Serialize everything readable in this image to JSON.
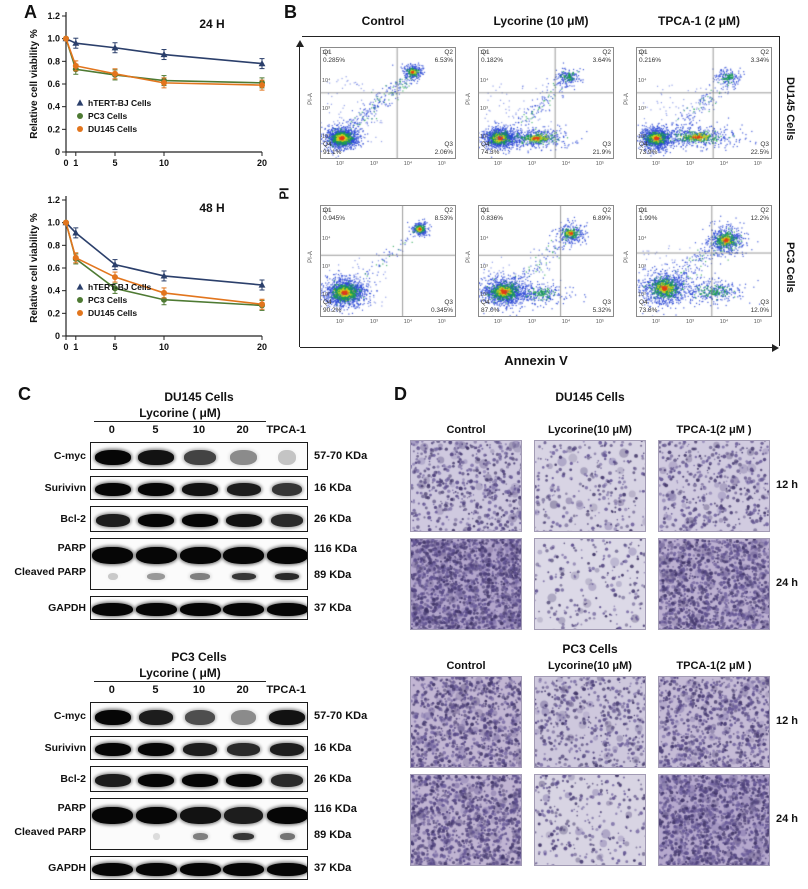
{
  "panels": {
    "a": {
      "label": "A"
    },
    "b": {
      "label": "B",
      "col_headers": [
        "Control",
        "Lycorine (10 μM)",
        "TPCA-1 (2 μM)"
      ],
      "row_labels": [
        "DU145 Cells",
        "PC3 Cells"
      ],
      "x_axis_label": "Annexin V",
      "y_axis_label": "PI",
      "plot_axis_label": "PI-A",
      "y_ticks": [
        "10⁵",
        "10⁴",
        "10³",
        "10²"
      ],
      "x_ticks": [
        "10²",
        "10³",
        "10⁴",
        "10⁵"
      ],
      "quadrant_labels": [
        "Q1",
        "Q2",
        "Q3",
        "Q4"
      ],
      "plots": [
        {
          "row": "DU145 Cells",
          "col": "Control",
          "q1": "0.285%",
          "q2": "6.53%",
          "q3": "2.06%",
          "q4": "91.1%"
        },
        {
          "row": "DU145 Cells",
          "col": "Lycorine (10 μM)",
          "q1": "0.182%",
          "q2": "3.64%",
          "q3": "21.9%",
          "q4": "74.3%"
        },
        {
          "row": "DU145 Cells",
          "col": "TPCA-1 (2 μM)",
          "q1": "0.216%",
          "q2": "3.34%",
          "q3": "22.5%",
          "q4": "73.9%"
        },
        {
          "row": "PC3 Cells",
          "col": "Control",
          "q1": "0.945%",
          "q2": "8.53%",
          "q3": "0.345%",
          "q4": "90.2%"
        },
        {
          "row": "PC3 Cells",
          "col": "Lycorine (10 μM)",
          "q1": "0.836%",
          "q2": "6.89%",
          "q3": "5.32%",
          "q4": "87.0%"
        },
        {
          "row": "PC3 Cells",
          "col": "TPCA-1 (2 μM)",
          "q1": "1.99%",
          "q2": "12.2%",
          "q3": "12.0%",
          "q4": "73.8%"
        }
      ]
    },
    "c": {
      "label": "C",
      "groups": [
        {
          "title": "DU145 Cells",
          "treatment_label": "Lycorine ( μM)",
          "lanes": [
            "0",
            "5",
            "10",
            "20",
            "TPCA-1"
          ],
          "rows": [
            {
              "labels": [
                "C-myc"
              ],
              "kda": [
                "57-70 KDa"
              ]
            },
            {
              "labels": [
                "Surivivn"
              ],
              "kda": [
                "16 KDa"
              ]
            },
            {
              "labels": [
                "Bcl-2"
              ],
              "kda": [
                "26 KDa"
              ]
            },
            {
              "labels": [
                "PARP",
                "Cleaved PARP"
              ],
              "kda": [
                "116 KDa",
                "89 KDa"
              ]
            },
            {
              "labels": [
                "GAPDH"
              ],
              "kda": [
                "37 KDa"
              ]
            }
          ]
        },
        {
          "title": "PC3 Cells",
          "treatment_label": "Lycorine ( μM)",
          "lanes": [
            "0",
            "5",
            "10",
            "20",
            "TPCA-1"
          ],
          "rows": [
            {
              "labels": [
                "C-myc"
              ],
              "kda": [
                "57-70 KDa"
              ]
            },
            {
              "labels": [
                "Surivivn"
              ],
              "kda": [
                "16 KDa"
              ]
            },
            {
              "labels": [
                "Bcl-2"
              ],
              "kda": [
                "26 KDa"
              ]
            },
            {
              "labels": [
                "PARP",
                "Cleaved PARP"
              ],
              "kda": [
                "116 KDa",
                "89 KDa"
              ]
            },
            {
              "labels": [
                "GAPDH"
              ],
              "kda": [
                "37 KDa"
              ]
            }
          ]
        }
      ]
    },
    "d": {
      "label": "D",
      "groups": [
        {
          "title": "DU145 Cells",
          "col_headers": [
            "Control",
            "Lycorine(10 μM)",
            "TPCA-1(2 μM )"
          ],
          "row_labels": [
            "12 h",
            "24 h"
          ]
        },
        {
          "title": "PC3 Cells",
          "col_headers": [
            "Control",
            "Lycorine(10 μM)",
            "TPCA-1(2 μM )"
          ],
          "row_labels": [
            "12 h",
            "24 h"
          ]
        }
      ]
    }
  },
  "chart_data": [
    {
      "type": "line",
      "title": "24 H",
      "ylabel": "Relative cell viability  %",
      "x": [
        0,
        1,
        5,
        10,
        20
      ],
      "x_tick_labels": [
        "0",
        "1",
        "5",
        "10",
        "20"
      ],
      "y_ticks": [
        0,
        0.2,
        0.4,
        0.6,
        0.8,
        1.0,
        1.2
      ],
      "y_tick_labels": [
        "0",
        "0.2",
        "0.4",
        "0.6",
        "0.8",
        "1.0",
        "1.2"
      ],
      "ylim": [
        0,
        1.2
      ],
      "legend_position": "lower-left",
      "grid": false,
      "series": [
        {
          "name": "hTERT-BJ Cells",
          "color": "#2b3f6b",
          "marker": "triangle",
          "values": [
            1.0,
            0.96,
            0.92,
            0.86,
            0.78
          ]
        },
        {
          "name": "PC3 Cells",
          "color": "#4e7a33",
          "marker": "circle",
          "values": [
            1.0,
            0.73,
            0.68,
            0.63,
            0.61
          ]
        },
        {
          "name": "DU145 Cells",
          "color": "#e2751d",
          "marker": "circle",
          "values": [
            1.0,
            0.76,
            0.69,
            0.61,
            0.59
          ]
        }
      ]
    },
    {
      "type": "line",
      "title": "48 H",
      "ylabel": "Relative cell viability  %",
      "x": [
        0,
        1,
        5,
        10,
        20
      ],
      "x_tick_labels": [
        "0",
        "1",
        "5",
        "10",
        "20"
      ],
      "y_ticks": [
        0,
        0.2,
        0.4,
        0.6,
        0.8,
        1.0,
        1.2
      ],
      "y_tick_labels": [
        "0",
        "0.2",
        "0.4",
        "0.6",
        "0.8",
        "1.0",
        "1.2"
      ],
      "ylim": [
        0,
        1.2
      ],
      "legend_position": "lower-left",
      "grid": false,
      "series": [
        {
          "name": "hTERT-BJ Cells",
          "color": "#2b3f6b",
          "marker": "triangle",
          "values": [
            1.0,
            0.91,
            0.63,
            0.53,
            0.45
          ]
        },
        {
          "name": "PC3 Cells",
          "color": "#4e7a33",
          "marker": "circle",
          "values": [
            1.0,
            0.68,
            0.42,
            0.32,
            0.27
          ]
        },
        {
          "name": "DU145 Cells",
          "color": "#e2751d",
          "marker": "circle",
          "values": [
            1.0,
            0.69,
            0.52,
            0.38,
            0.28
          ]
        }
      ]
    }
  ]
}
